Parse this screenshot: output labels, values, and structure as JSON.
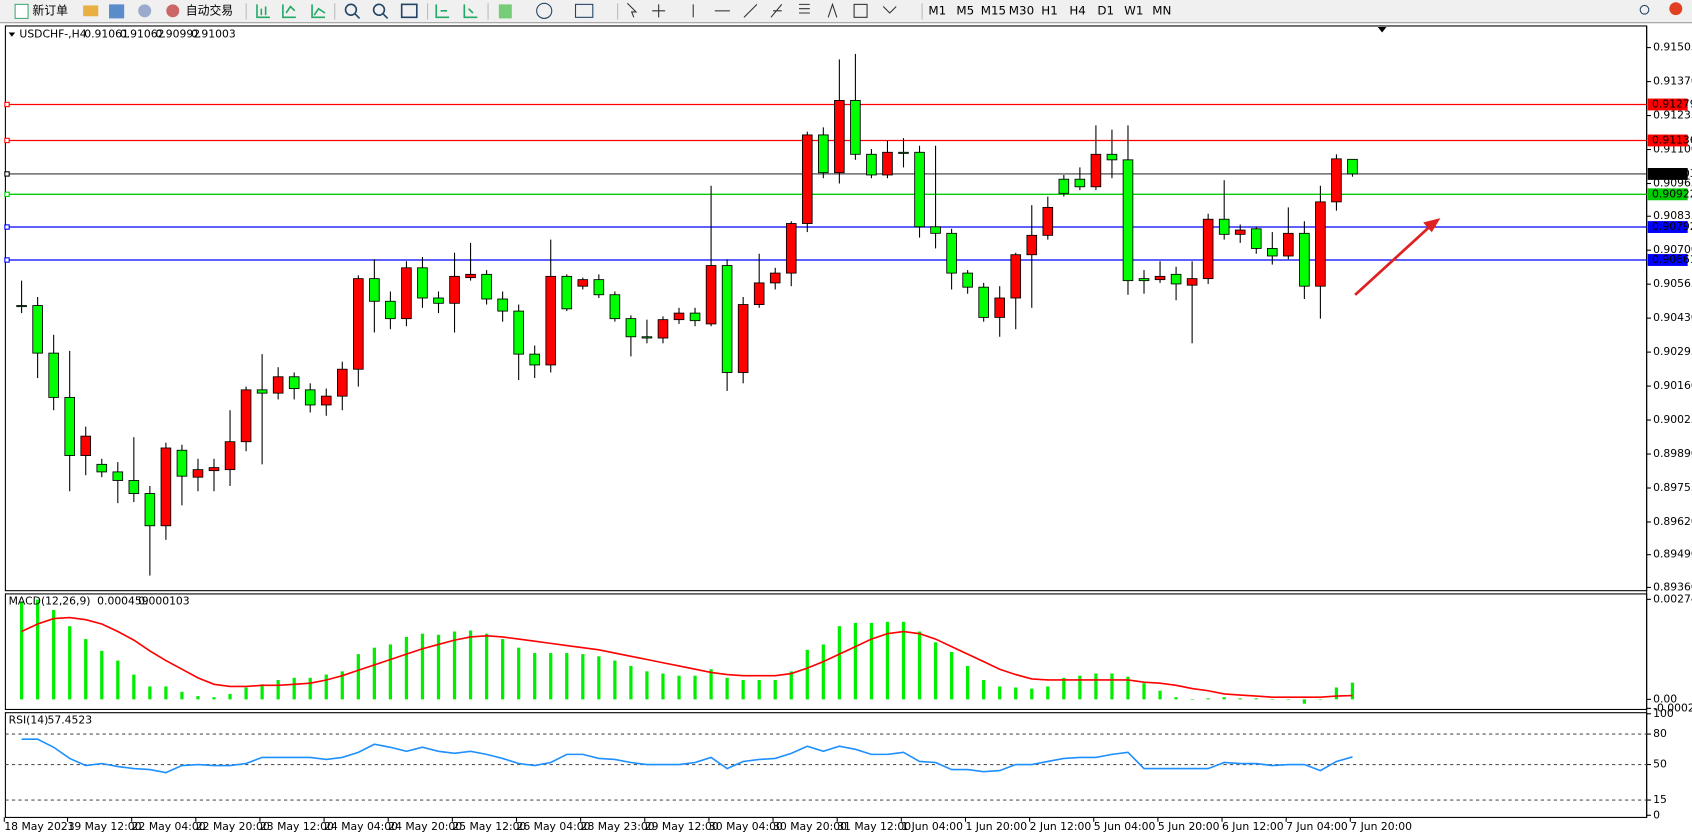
{
  "toolbar": {
    "new_order": "新订单",
    "auto_trading": "自动交易",
    "timeframes": [
      "M1",
      "M5",
      "M15",
      "M30",
      "H1",
      "H4",
      "D1",
      "W1",
      "MN"
    ]
  },
  "chart_data": {
    "type": "candlestick",
    "symbol": "USDCHF-,H4",
    "up_color": "#ff0000",
    "down_color": "#00ff00",
    "ylim": [
      0.89347,
      0.91591
    ],
    "yticks": [
      0.91505,
      {
        "value": 0.9137,
        "label": "0.91370"
      },
      0.91235,
      {
        "value": 0.911,
        "label": "0.91100"
      },
      0.90965,
      0.90835,
      {
        "value": 0.907,
        "label": "0.90700"
      },
      0.90565,
      {
        "value": 0.9043,
        "label": "0.90430"
      },
      0.90295,
      {
        "value": 0.9016,
        "label": "0.90160"
      },
      0.90025,
      {
        "value": 0.8989,
        "label": "0.89890"
      },
      0.89755,
      {
        "value": 0.8962,
        "label": "0.89620"
      },
      {
        "value": 0.8949,
        "label": "0.89490"
      },
      {
        "value": 0.8936,
        "label": "0.89360"
      }
    ],
    "lines": [
      {
        "value": 0.91279,
        "color": "#ff0000"
      },
      {
        "value": 0.91136,
        "color": "#ff0000"
      },
      {
        "value": 0.91003,
        "color": "#000000"
      },
      {
        "value": 0.90922,
        "color": "#00cc00"
      },
      {
        "value": 0.90792,
        "color": "#0000ff"
      },
      {
        "value": 0.90661,
        "color": "#0000ff"
      }
    ],
    "categories": [
      "18 May 2023",
      null,
      null,
      "19 May 12:00",
      null,
      null,
      null,
      "22 May 04:00",
      null,
      null,
      null,
      "22 May 20:00",
      null,
      null,
      null,
      "23 May 12:00",
      null,
      null,
      null,
      "24 May 04:00",
      null,
      null,
      null,
      "24 May 20:00",
      null,
      null,
      null,
      "25 May 12:00",
      null,
      null,
      null,
      "26 May 04:00",
      null,
      null,
      null,
      "28 May 23:00",
      null,
      null,
      null,
      "29 May 12:00",
      null,
      null,
      null,
      "30 May 04:00",
      null,
      null,
      null,
      "30 May 20:00",
      null,
      null,
      null,
      "31 May 12:00",
      null,
      null,
      null,
      "1 Jun 04:00",
      null,
      null,
      null,
      "1 Jun 20:00",
      null,
      null,
      null,
      "2 Jun 12:00",
      null,
      null,
      null,
      "5 Jun 04:00",
      null,
      null,
      null,
      "5 Jun 20:00",
      null,
      null,
      null,
      "6 Jun 12:00",
      null,
      null,
      null,
      "7 Jun 04:00",
      null,
      null,
      null,
      "7 Jun 20:00"
    ],
    "candles": [
      [
        0.9048,
        0.90579,
        0.9045,
        0.9048
      ],
      [
        0.9048,
        0.90514,
        0.90192,
        0.90291
      ],
      [
        0.90291,
        0.90364,
        0.90064,
        0.90115
      ],
      [
        0.90115,
        0.903,
        0.89742,
        0.89884
      ],
      [
        0.89884,
        0.89999,
        0.89806,
        0.89961
      ],
      [
        0.89849,
        0.89871,
        0.89798,
        0.89819
      ],
      [
        0.89819,
        0.89858,
        0.89695,
        0.89785
      ],
      [
        0.89785,
        0.89957,
        0.89699,
        0.89733
      ],
      [
        0.89733,
        0.89763,
        0.89407,
        0.89605
      ],
      [
        0.89605,
        0.89935,
        0.89549,
        0.89914
      ],
      [
        0.89905,
        0.89927,
        0.89686,
        0.89802
      ],
      [
        0.89798,
        0.89871,
        0.89742,
        0.89828
      ],
      [
        0.89824,
        0.89871,
        0.89742,
        0.89836
      ],
      [
        0.89828,
        0.90064,
        0.89763,
        0.89939
      ],
      [
        0.89939,
        0.90158,
        0.89901,
        0.90145
      ],
      [
        0.90145,
        0.90287,
        0.89849,
        0.90132
      ],
      [
        0.90132,
        0.90235,
        0.90107,
        0.90197
      ],
      [
        0.90197,
        0.90214,
        0.90107,
        0.9015
      ],
      [
        0.90145,
        0.90171,
        0.90055,
        0.90085
      ],
      [
        0.90085,
        0.9015,
        0.90042,
        0.9012
      ],
      [
        0.9012,
        0.90257,
        0.90064,
        0.90227
      ],
      [
        0.90227,
        0.906,
        0.90158,
        0.90587
      ],
      [
        0.90587,
        0.90664,
        0.90373,
        0.90497
      ],
      [
        0.90497,
        0.90536,
        0.90386,
        0.90428
      ],
      [
        0.90428,
        0.90656,
        0.90398,
        0.9063
      ],
      [
        0.9063,
        0.90673,
        0.90471,
        0.9051
      ],
      [
        0.9051,
        0.90536,
        0.9045,
        0.90489
      ],
      [
        0.90489,
        0.9069,
        0.90373,
        0.90596
      ],
      [
        0.90591,
        0.90729,
        0.90579,
        0.90604
      ],
      [
        0.90604,
        0.90621,
        0.90484,
        0.90506
      ],
      [
        0.90506,
        0.90536,
        0.90416,
        0.90458
      ],
      [
        0.90458,
        0.90484,
        0.90184,
        0.90287
      ],
      [
        0.90287,
        0.90321,
        0.90192,
        0.90244
      ],
      [
        0.90244,
        0.90742,
        0.90214,
        0.90596
      ],
      [
        0.90596,
        0.90604,
        0.90458,
        0.90467
      ],
      [
        0.90557,
        0.90591,
        0.90544,
        0.90583
      ],
      [
        0.90583,
        0.90604,
        0.9051,
        0.90523
      ],
      [
        0.90523,
        0.90536,
        0.90416,
        0.90428
      ],
      [
        0.90428,
        0.90441,
        0.90278,
        0.90356
      ],
      [
        0.90356,
        0.90424,
        0.9033,
        0.90351
      ],
      [
        0.90351,
        0.90437,
        0.9033,
        0.90424
      ],
      [
        0.90424,
        0.90471,
        0.90407,
        0.9045
      ],
      [
        0.9045,
        0.90471,
        0.90398,
        0.9042
      ],
      [
        0.90407,
        0.90956,
        0.90398,
        0.90639
      ],
      [
        0.90639,
        0.90664,
        0.90141,
        0.90214
      ],
      [
        0.90214,
        0.90514,
        0.90171,
        0.90484
      ],
      [
        0.90484,
        0.90686,
        0.90471,
        0.9057
      ],
      [
        0.9057,
        0.9063,
        0.90544,
        0.90609
      ],
      [
        0.90609,
        0.90815,
        0.90557,
        0.90806
      ],
      [
        0.90806,
        0.91171,
        0.90772,
        0.91158
      ],
      [
        0.91158,
        0.91188,
        0.90986,
        0.91008
      ],
      [
        0.91008,
        0.91458,
        0.90965,
        0.91295
      ],
      [
        0.91295,
        0.9148,
        0.91059,
        0.91081
      ],
      [
        0.91081,
        0.91102,
        0.90986,
        0.90999
      ],
      [
        0.90999,
        0.91136,
        0.90986,
        0.91089
      ],
      [
        0.91089,
        0.91145,
        0.91029,
        0.91089
      ],
      [
        0.91089,
        0.91115,
        0.9075,
        0.90793
      ],
      [
        0.90793,
        0.91115,
        0.90707,
        0.90767
      ],
      [
        0.90767,
        0.90785,
        0.90544,
        0.90609
      ],
      [
        0.90609,
        0.90621,
        0.90527,
        0.90553
      ],
      [
        0.90553,
        0.9057,
        0.90416,
        0.90433
      ],
      [
        0.90433,
        0.90557,
        0.90356,
        0.9051
      ],
      [
        0.9051,
        0.9069,
        0.90386,
        0.90682
      ],
      [
        0.90682,
        0.90879,
        0.90471,
        0.90759
      ],
      [
        0.90759,
        0.90913,
        0.90742,
        0.9087
      ],
      [
        0.90982,
        0.90999,
        0.90913,
        0.90926
      ],
      [
        0.90982,
        0.91029,
        0.90939,
        0.90952
      ],
      [
        0.90952,
        0.91196,
        0.90939,
        0.91081
      ],
      [
        0.91081,
        0.91179,
        0.90986,
        0.91059
      ],
      [
        0.91059,
        0.91196,
        0.90523,
        0.90579
      ],
      [
        0.90587,
        0.90621,
        0.90527,
        0.90579
      ],
      [
        0.90583,
        0.90656,
        0.9057,
        0.90596
      ],
      [
        0.90604,
        0.90634,
        0.90501,
        0.90566
      ],
      [
        0.90561,
        0.90656,
        0.9033,
        0.90587
      ],
      [
        0.90587,
        0.90845,
        0.90566,
        0.90823
      ],
      [
        0.90823,
        0.90978,
        0.90742,
        0.90763
      ],
      [
        0.90763,
        0.90802,
        0.90729,
        0.9078
      ],
      [
        0.90785,
        0.90793,
        0.90686,
        0.90707
      ],
      [
        0.90707,
        0.90772,
        0.90643,
        0.90677
      ],
      [
        0.90677,
        0.9087,
        0.90664,
        0.90767
      ],
      [
        0.90767,
        0.90815,
        0.90506,
        0.90557
      ],
      [
        0.90557,
        0.90956,
        0.90428,
        0.90892
      ],
      [
        0.90892,
        0.91081,
        0.90857,
        0.91063
      ],
      [
        0.91061,
        0.91062,
        0.90992,
        0.91003
      ]
    ],
    "macd": {
      "name": "MACD(12,26,9)",
      "histogram_color": "#00ee00",
      "signal_color": "#ff0000",
      "ylim": [
        -0.000247,
        0.002741
      ],
      "yticks": [
        0.002741,
        {
          "value": 0,
          "label": "0.00"
        },
        -0.000247
      ],
      "histogram": [
        0.002655,
        0.002735,
        0.002449,
        0.002006,
        0.001652,
        0.001328,
        0.001062,
        0.000679,
        0.000354,
        0.000354,
        0.000207,
        8.9e-05,
        5.9e-05,
        0.000148,
        0.000325,
        0.000413,
        0.000531,
        0.00059,
        0.00059,
        0.000679,
        0.000767,
        0.001239,
        0.001416,
        0.001505,
        0.001711,
        0.0018,
        0.00177,
        0.001859,
        0.001888,
        0.0018,
        0.001652,
        0.001416,
        0.001269,
        0.001269,
        0.001269,
        0.001239,
        0.00118,
        0.001062,
        0.000915,
        0.000767,
        0.000708,
        0.000649,
        0.000649,
        0.000826,
        0.00059,
        0.000531,
        0.000531,
        0.000531,
        0.000767,
        0.001357,
        0.001505,
        0.002006,
        0.002095,
        0.002095,
        0.002124,
        0.002124,
        0.001859,
        0.001564,
        0.001298,
        0.000915,
        0.000531,
        0.000354,
        0.000325,
        0.000295,
        0.000354,
        0.00059,
        0.000649,
        0.000708,
        0.000708,
        0.00062,
        0.000443,
        0.000236,
        5.9e-05,
        0,
        3e-05,
        5.9e-05,
        3e-05,
        3e-05,
        0,
        0,
        -0.000118,
        0,
        0.000325,
        0.000459
      ],
      "signal": [
        0.001859,
        0.002065,
        0.002213,
        0.002242,
        0.002183,
        0.002065,
        0.001859,
        0.001623,
        0.001328,
        0.001062,
        0.000826,
        0.00059,
        0.000413,
        0.000354,
        0.000354,
        0.000384,
        0.000384,
        0.000413,
        0.000443,
        0.000531,
        0.000649,
        0.000797,
        0.000944,
        0.001092,
        0.001239,
        0.001387,
        0.001505,
        0.001623,
        0.001711,
        0.001741,
        0.001711,
        0.001652,
        0.001593,
        0.001534,
        0.001475,
        0.001416,
        0.001357,
        0.001269,
        0.00118,
        0.001092,
        0.001003,
        0.000915,
        0.000826,
        0.000738,
        0.000679,
        0.000649,
        0.000649,
        0.000649,
        0.000708,
        0.000856,
        0.001033,
        0.001239,
        0.001446,
        0.001652,
        0.0018,
        0.001859,
        0.0018,
        0.001652,
        0.001446,
        0.001239,
        0.001033,
        0.000826,
        0.000679,
        0.000561,
        0.000531,
        0.000531,
        0.000531,
        0.000531,
        0.000531,
        0.000531,
        0.000472,
        0.000443,
        0.000384,
        0.000295,
        0.000236,
        0.000148,
        0.000118,
        8.9e-05,
        5.9e-05,
        5.9e-05,
        5.9e-05,
        5.9e-05,
        8.9e-05,
        0.000103
      ]
    },
    "rsi": {
      "name": "RSI(14)",
      "color": "#1e90ff",
      "ylim": [
        0,
        100
      ],
      "yticks": [
        100,
        80,
        50,
        15,
        0
      ],
      "levels": [
        80,
        50,
        15
      ],
      "values": [
        75,
        75,
        67,
        56,
        49,
        51,
        48,
        46,
        45,
        42,
        49,
        50,
        49,
        49,
        51,
        57,
        57,
        57,
        57,
        55,
        57,
        62,
        70,
        67,
        63,
        67,
        63,
        61,
        63,
        60,
        56,
        51,
        49,
        52,
        60,
        60,
        56,
        55,
        52,
        50,
        50,
        50,
        52,
        57,
        46,
        53,
        55,
        56,
        61,
        68,
        63,
        68,
        65,
        60,
        60,
        62,
        53,
        52,
        45,
        45,
        43,
        44,
        50,
        50,
        53,
        56,
        57,
        57,
        60,
        62,
        46,
        46,
        46,
        46,
        46,
        52,
        51,
        51,
        49,
        50,
        50,
        44,
        53,
        57.4523
      ]
    }
  }
}
